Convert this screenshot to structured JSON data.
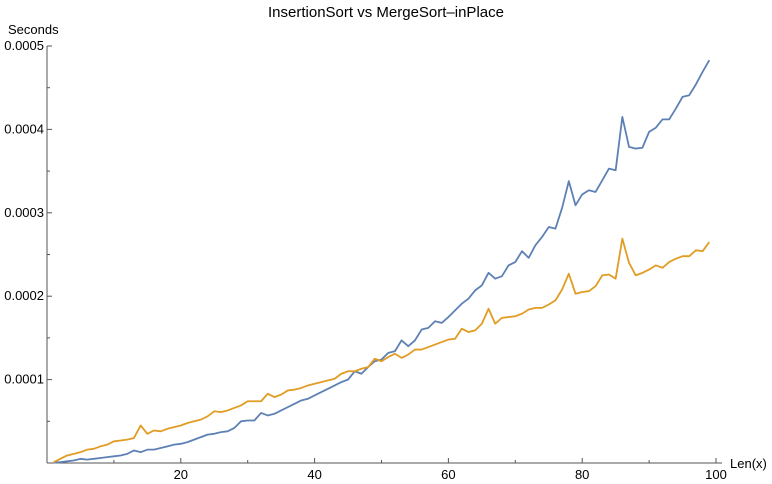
{
  "chart_data": {
    "type": "line",
    "title": "InsertionSort vs MergeSort–inPlace",
    "xlabel": "Len(x)",
    "ylabel": "Seconds",
    "xlim": [
      0,
      100
    ],
    "ylim": [
      0,
      0.0005
    ],
    "xticks": [
      {
        "value": 20,
        "label": "20"
      },
      {
        "value": 40,
        "label": "40"
      },
      {
        "value": 60,
        "label": "60"
      },
      {
        "value": 80,
        "label": "80"
      },
      {
        "value": 100,
        "label": "100"
      }
    ],
    "yticks": [
      {
        "value": 0.0001,
        "label": "0.0001"
      },
      {
        "value": 0.0002,
        "label": "0.0002"
      },
      {
        "value": 0.0003,
        "label": "0.0003"
      },
      {
        "value": 0.0004,
        "label": "0.0004"
      },
      {
        "value": 0.0005,
        "label": "0.0005"
      }
    ],
    "grid": false,
    "x": [
      1,
      2,
      3,
      4,
      5,
      6,
      7,
      8,
      9,
      10,
      11,
      12,
      13,
      14,
      15,
      16,
      17,
      18,
      19,
      20,
      21,
      22,
      23,
      24,
      25,
      26,
      27,
      28,
      29,
      30,
      31,
      32,
      33,
      34,
      35,
      36,
      37,
      38,
      39,
      40,
      41,
      42,
      43,
      44,
      45,
      46,
      47,
      48,
      49,
      50,
      51,
      52,
      53,
      54,
      55,
      56,
      57,
      58,
      59,
      60,
      61,
      62,
      63,
      64,
      65,
      66,
      67,
      68,
      69,
      70,
      71,
      72,
      73,
      74,
      75,
      76,
      77,
      78,
      79,
      80,
      81,
      82,
      83,
      84,
      85,
      86,
      87,
      88,
      89,
      90,
      91,
      92,
      93,
      94,
      95,
      96,
      97,
      98,
      99
    ],
    "series": [
      {
        "color": "#5e81b5",
        "values": [
          5e-07,
          1e-06,
          2e-06,
          3e-06,
          5e-06,
          4e-06,
          5e-06,
          6e-06,
          7e-06,
          8e-06,
          9e-06,
          1.1e-05,
          1.5e-05,
          1.3e-05,
          1.6e-05,
          1.6e-05,
          1.8e-05,
          2e-05,
          2.2e-05,
          2.3e-05,
          2.5e-05,
          2.8e-05,
          3.1e-05,
          3.4e-05,
          3.5e-05,
          3.7e-05,
          3.8e-05,
          4.2e-05,
          5e-05,
          5.1e-05,
          5.1e-05,
          6e-05,
          5.7e-05,
          5.9e-05,
          6.3e-05,
          6.7e-05,
          7.1e-05,
          7.5e-05,
          7.7e-05,
          8.1e-05,
          8.5e-05,
          8.9e-05,
          9.3e-05,
          9.7e-05,
          0.0001,
          0.00011,
          0.000107,
          0.000115,
          0.000122,
          0.000124,
          0.000132,
          0.000134,
          0.000147,
          0.00014,
          0.000147,
          0.00016,
          0.000162,
          0.00017,
          0.000168,
          0.000175,
          0.000183,
          0.000191,
          0.000197,
          0.000207,
          0.000213,
          0.000228,
          0.000221,
          0.000224,
          0.000237,
          0.000241,
          0.000254,
          0.000246,
          0.000261,
          0.000271,
          0.000283,
          0.000281,
          0.000306,
          0.000338,
          0.000309,
          0.000322,
          0.000327,
          0.000325,
          0.000339,
          0.000353,
          0.000351,
          0.000415,
          0.000379,
          0.000377,
          0.000378,
          0.000397,
          0.000402,
          0.000412,
          0.000412,
          0.000425,
          0.000439,
          0.000441,
          0.000454,
          0.000469,
          0.000483
        ]
      },
      {
        "color": "#e19c24",
        "values": [
          1e-06,
          5e-06,
          9e-06,
          1.1e-05,
          1.3e-05,
          1.6e-05,
          1.7e-05,
          2e-05,
          2.2e-05,
          2.6e-05,
          2.7e-05,
          2.8e-05,
          3e-05,
          4.5e-05,
          3.5e-05,
          3.9e-05,
          3.8e-05,
          4.1e-05,
          4.3e-05,
          4.5e-05,
          4.8e-05,
          5e-05,
          5.2e-05,
          5.6e-05,
          6.2e-05,
          6.1e-05,
          6.3e-05,
          6.6e-05,
          6.9e-05,
          7.4e-05,
          7.4e-05,
          7.4e-05,
          8.3e-05,
          7.9e-05,
          8.2e-05,
          8.7e-05,
          8.8e-05,
          9e-05,
          9.3e-05,
          9.5e-05,
          9.7e-05,
          9.9e-05,
          0.000101,
          0.000107,
          0.00011,
          0.00011,
          0.000113,
          0.000115,
          0.000125,
          0.000122,
          0.000127,
          0.000131,
          0.000126,
          0.00013,
          0.000136,
          0.000136,
          0.000139,
          0.000142,
          0.000145,
          0.000148,
          0.000149,
          0.000161,
          0.000157,
          0.000159,
          0.000167,
          0.000185,
          0.000167,
          0.000174,
          0.000175,
          0.000176,
          0.000179,
          0.000184,
          0.000186,
          0.000186,
          0.00019,
          0.000195,
          0.000208,
          0.000227,
          0.000203,
          0.000205,
          0.000206,
          0.000212,
          0.000225,
          0.000226,
          0.000221,
          0.000269,
          0.00024,
          0.000225,
          0.000228,
          0.000232,
          0.000237,
          0.000234,
          0.000241,
          0.000245,
          0.000248,
          0.000248,
          0.000255,
          0.000254,
          0.000265
        ]
      }
    ]
  }
}
